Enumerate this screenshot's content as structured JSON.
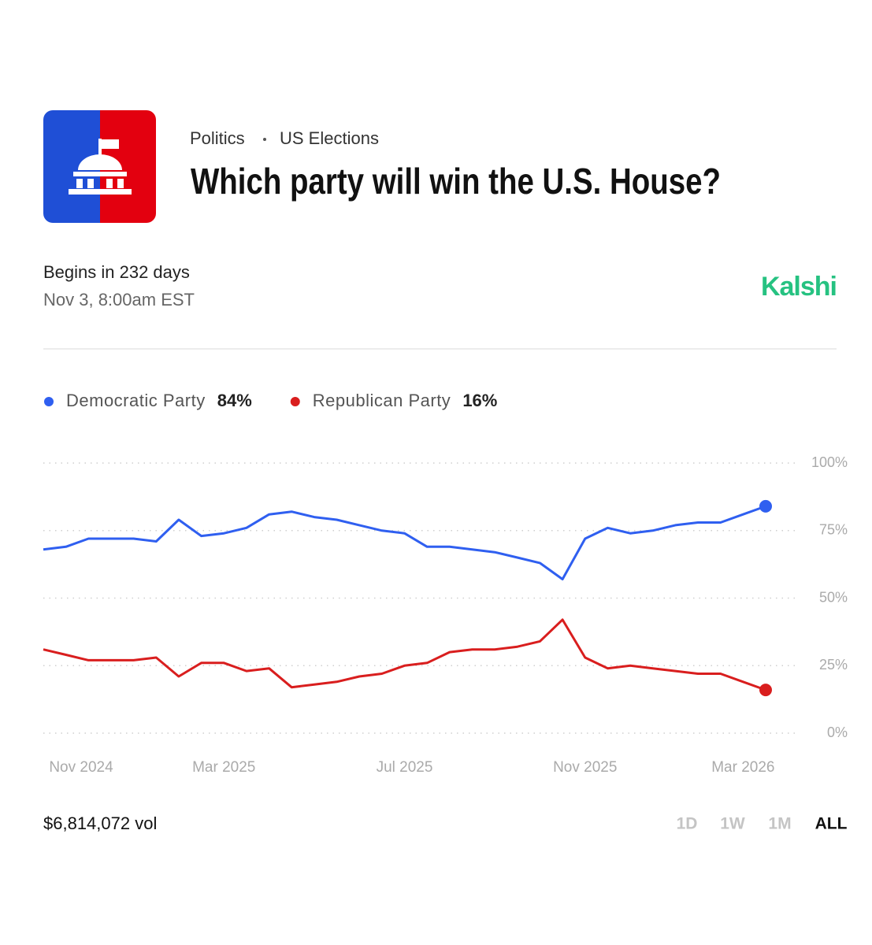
{
  "header": {
    "category": "Politics",
    "subcategory": "US Elections",
    "title": "Which party will win the U.S. House?"
  },
  "market": {
    "begins": "Begins in 232 days",
    "date": "Nov 3, 8:00am EST",
    "brand": "Kalshi"
  },
  "chart_data": {
    "type": "line",
    "categories": [
      "Nov 2024",
      null,
      null,
      null,
      null,
      null,
      null,
      null,
      "Mar 2025",
      null,
      null,
      null,
      null,
      null,
      null,
      null,
      "Jul 2025",
      null,
      null,
      null,
      null,
      null,
      null,
      null,
      "Nov 2025",
      null,
      null,
      null,
      null,
      null,
      null,
      "Mar 2026",
      null
    ],
    "series": [
      {
        "name": "Democratic Party",
        "color": "#2f5ff0",
        "value_label": "84%",
        "values": [
          68,
          69,
          72,
          72,
          72,
          71,
          79,
          73,
          74,
          76,
          81,
          82,
          80,
          79,
          77,
          75,
          74,
          69,
          69,
          68,
          67,
          65,
          63,
          57,
          72,
          76,
          74,
          75,
          77,
          78,
          78,
          81,
          84
        ]
      },
      {
        "name": "Republican Party",
        "color": "#d91e1e",
        "value_label": "16%",
        "values": [
          31,
          29,
          27,
          27,
          27,
          28,
          21,
          26,
          26,
          23,
          24,
          17,
          18,
          19,
          21,
          22,
          25,
          26,
          30,
          31,
          31,
          32,
          34,
          42,
          28,
          24,
          25,
          24,
          23,
          22,
          22,
          19,
          16
        ]
      }
    ],
    "ylim": [
      0,
      100
    ],
    "yticks": [
      {
        "value": 0,
        "label": "0%"
      },
      {
        "value": 25,
        "label": "25%"
      },
      {
        "value": 50,
        "label": "50%"
      },
      {
        "value": 75,
        "label": "75%"
      },
      {
        "value": 100,
        "label": "100%"
      }
    ],
    "grid": true
  },
  "footer": {
    "volume": "$6,814,072 vol",
    "ranges": [
      "1D",
      "1W",
      "1M",
      "ALL"
    ],
    "active_range": 3
  }
}
